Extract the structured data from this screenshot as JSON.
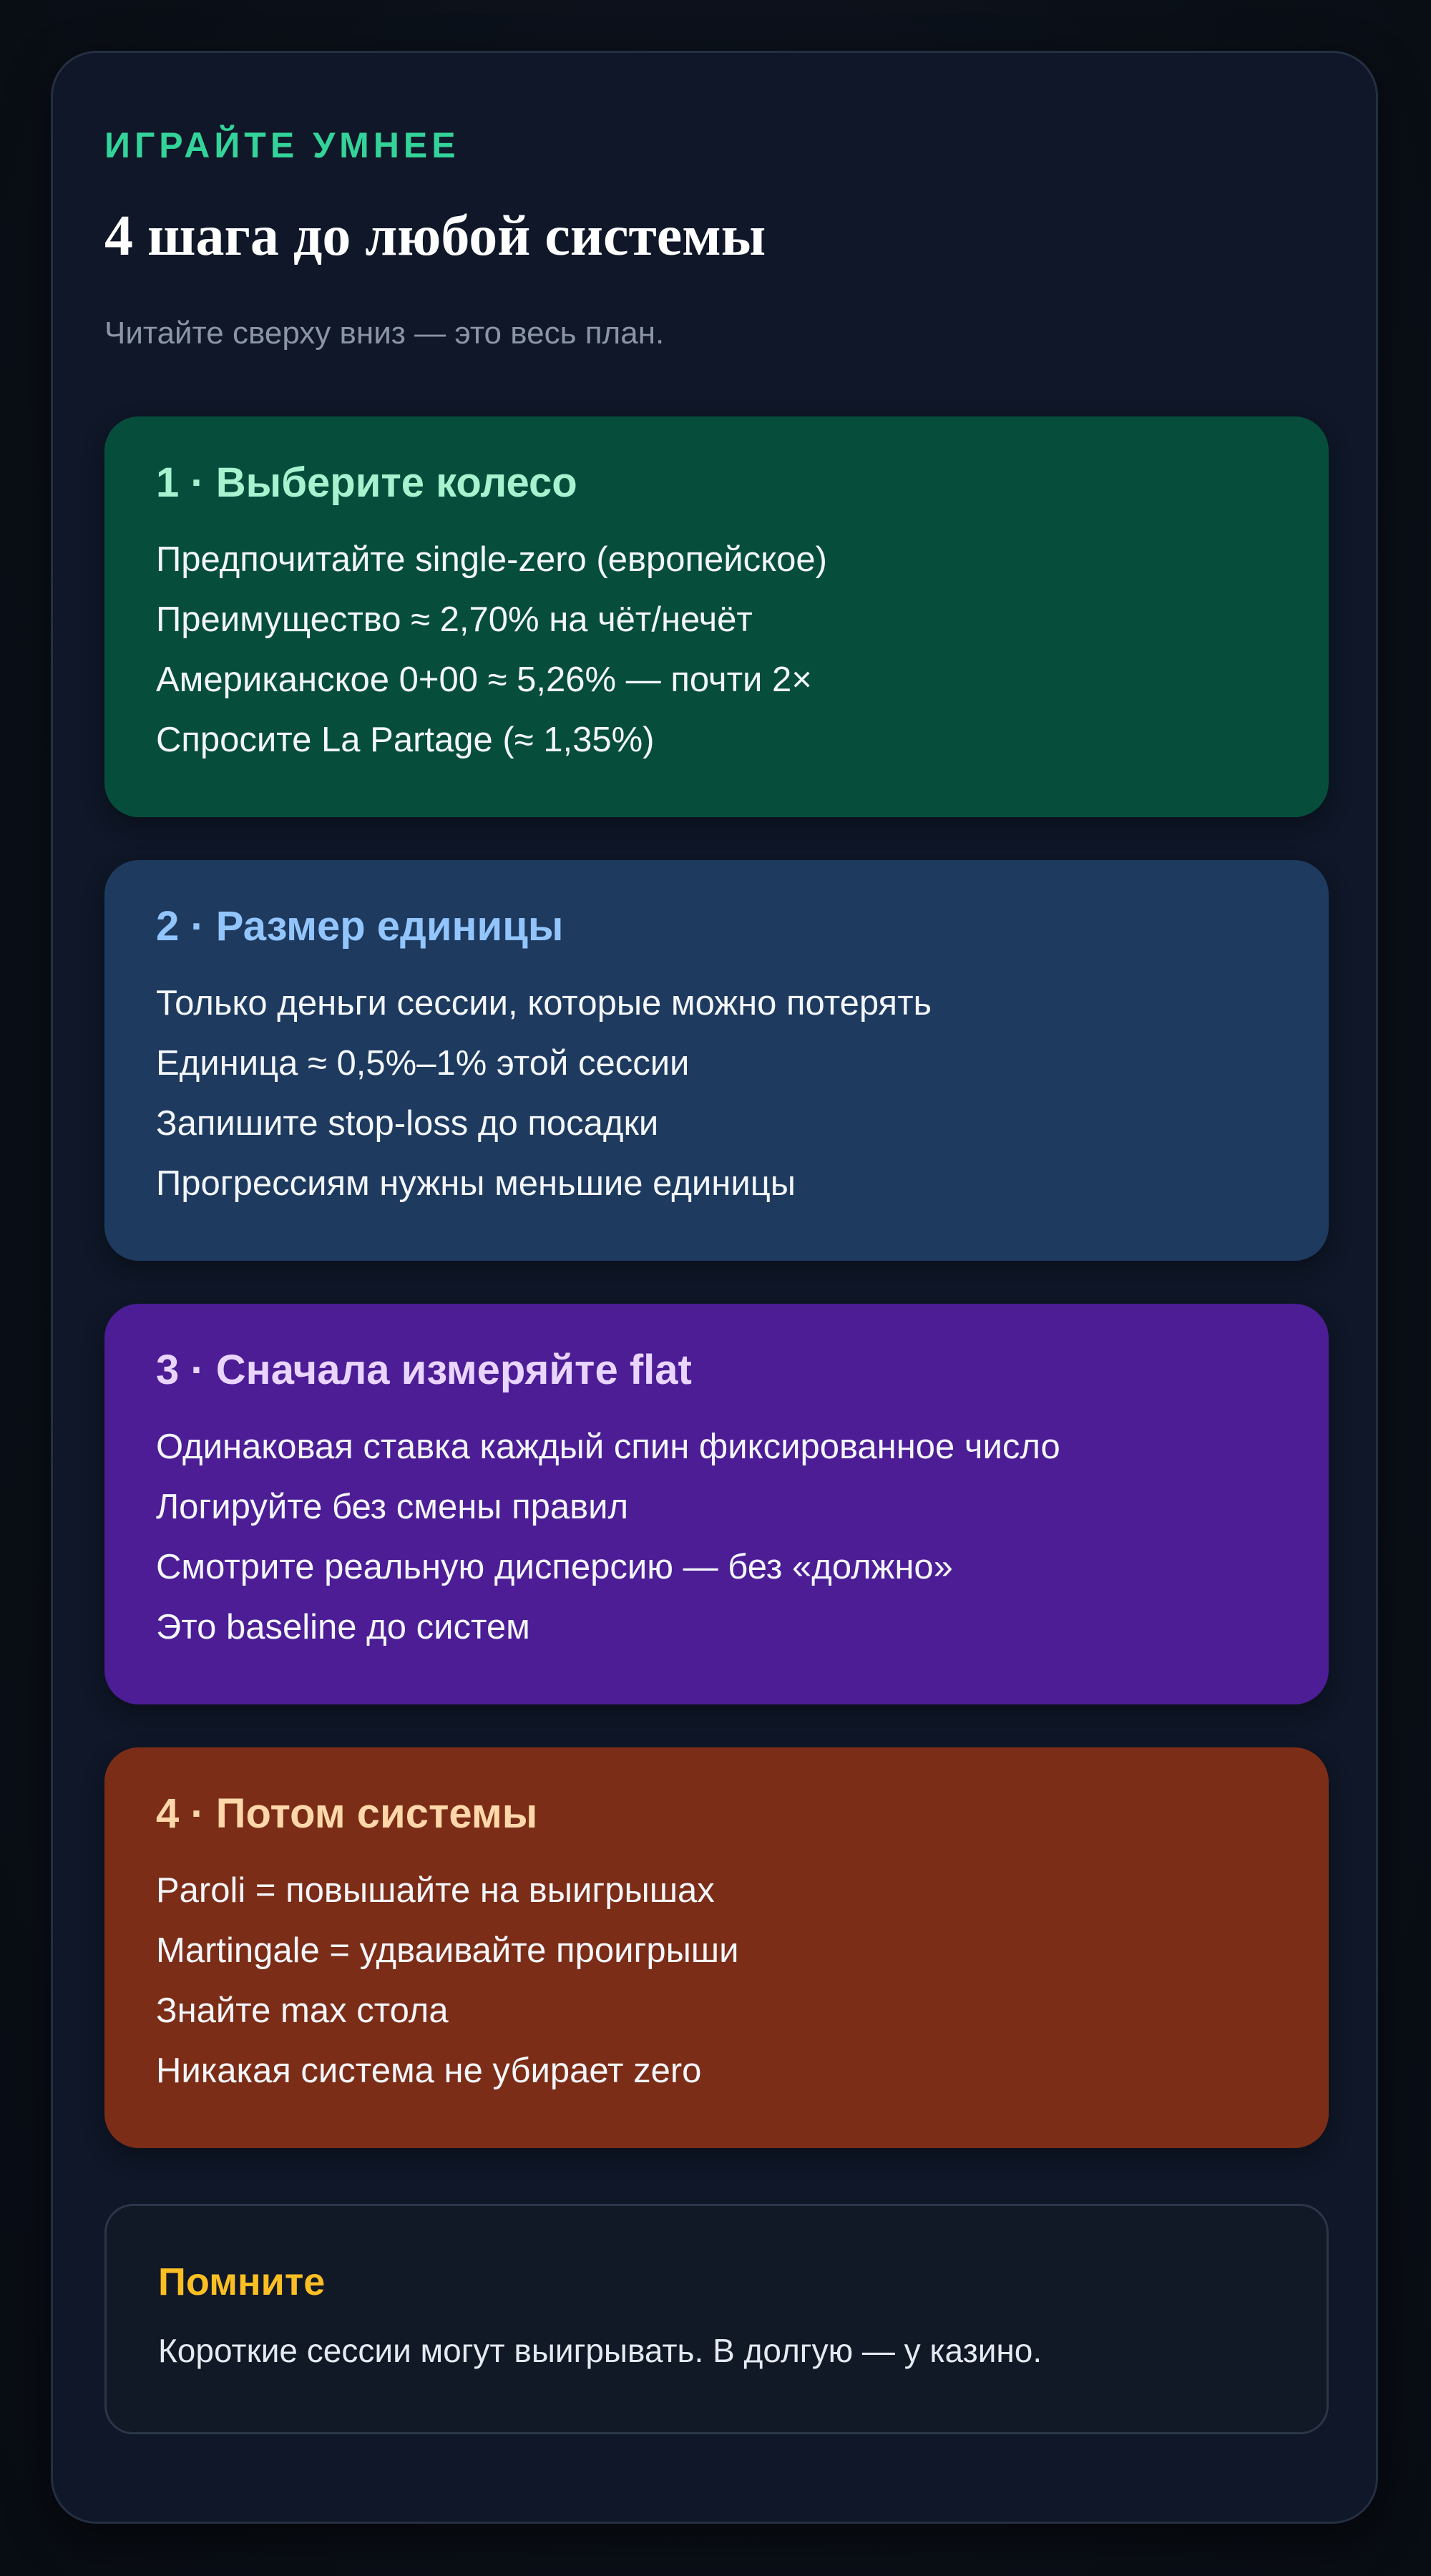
{
  "header": {
    "eyebrow": "ИГРАЙТЕ УМНЕЕ",
    "title": "4 шага до любой системы",
    "subtitle": "Читайте сверху вниз — это весь план."
  },
  "steps": [
    {
      "title": "1 · Выберите колесо",
      "color": "#064e3b",
      "title_color": "#a7f3d0",
      "lines": [
        "Предпочитайте single-zero (европейское)",
        "Преимущество ≈ 2,70% на чёт/нечёт",
        "Американское 0+00 ≈ 5,26% — почти 2×",
        "Спросите La Partage (≈ 1,35%)"
      ]
    },
    {
      "title": "2 · Размер единицы",
      "color": "#1e3a5f",
      "title_color": "#93c5fd",
      "lines": [
        "Только деньги сессии, которые можно потерять",
        "Единица ≈ 0,5%–1% этой сессии",
        "Запишите stop-loss до посадки",
        "Прогрессиям нужны меньшие единицы"
      ]
    },
    {
      "title": "3 · Сначала измеряйте flat",
      "color": "#4c1d95",
      "title_color": "#e9d5ff",
      "lines": [
        "Одинаковая ставка каждый спин фиксированное число",
        "Логируйте без смены правил",
        "Смотрите реальную дисперсию — без «должно»",
        "Это baseline до систем"
      ]
    },
    {
      "title": "4 · Потом системы",
      "color": "#7c2d17",
      "title_color": "#fed7aa",
      "lines": [
        "Paroli = повышайте на выигрышах",
        "Martingale = удваивайте проигрыши",
        "Знайте max стола",
        "Никакая система не убирает zero"
      ]
    }
  ],
  "note": {
    "title": "Помните",
    "text": "Короткие сессии могут выигрывать. В долгую — у казино."
  }
}
